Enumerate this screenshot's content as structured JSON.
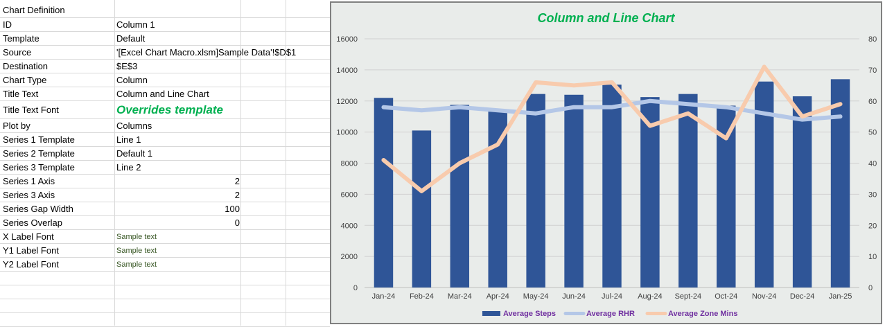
{
  "sheet": {
    "rows": [
      {
        "label": "Chart Definition",
        "value": "",
        "style": ""
      },
      {
        "label": "ID",
        "value": "Column 1",
        "style": ""
      },
      {
        "label": "Template",
        "value": "Default",
        "style": ""
      },
      {
        "label": "Source",
        "value": "'[Excel Chart Macro.xlsm]Sample Data'!$D$1",
        "style": ""
      },
      {
        "label": "Destination",
        "value": "$E$3",
        "style": ""
      },
      {
        "label": "Chart Type",
        "value": "Column",
        "style": ""
      },
      {
        "label": "Title Text",
        "value": "Column and Line Chart",
        "style": ""
      },
      {
        "label": "Title Text Font",
        "value": "Overrides template",
        "style": "big"
      },
      {
        "label": "Plot by",
        "value": "Columns",
        "style": ""
      },
      {
        "label": "Series 1 Template",
        "value": "Line 1",
        "style": ""
      },
      {
        "label": "Series 2 Template",
        "value": "Default 1",
        "style": ""
      },
      {
        "label": "Series 3 Template",
        "value": "Line 2",
        "style": ""
      },
      {
        "label": "Series 1 Axis",
        "value": "2",
        "style": "num"
      },
      {
        "label": "Series 3 Axis",
        "value": "2",
        "style": "num"
      },
      {
        "label": "Series Gap Width",
        "value": "100",
        "style": "num"
      },
      {
        "label": "Series Overlap",
        "value": "0",
        "style": "num"
      },
      {
        "label": "X Label Font",
        "value": "Sample text",
        "style": "small"
      },
      {
        "label": "Y1 Label Font",
        "value": "Sample text",
        "style": "small"
      },
      {
        "label": "Y2 Label Font",
        "value": "Sample text",
        "style": "small"
      },
      {
        "label": "",
        "value": "",
        "style": ""
      },
      {
        "label": "",
        "value": "",
        "style": ""
      },
      {
        "label": "",
        "value": "",
        "style": ""
      },
      {
        "label": "",
        "value": "",
        "style": ""
      }
    ]
  },
  "chart_data": {
    "type": "bar",
    "title": "Column and Line Chart",
    "categories": [
      "Jan-24",
      "Feb-24",
      "Mar-24",
      "Apr-24",
      "May-24",
      "Jun-24",
      "Jul-24",
      "Aug-24",
      "Sept-24",
      "Oct-24",
      "Nov-24",
      "Dec-24",
      "Jan-25"
    ],
    "series": [
      {
        "name": "Average Steps",
        "type": "bar",
        "axis": "primary",
        "color": "#2f5597",
        "values": [
          12200,
          10100,
          11750,
          11450,
          12450,
          12400,
          13050,
          12250,
          12450,
          11700,
          13250,
          12300,
          13400
        ]
      },
      {
        "name": "Average RHR",
        "type": "line",
        "axis": "secondary",
        "color": "#b4c7e7",
        "values": [
          58,
          57,
          58,
          57,
          56,
          58,
          58,
          60,
          59,
          58,
          56,
          54,
          55
        ]
      },
      {
        "name": "Average Zone Mins",
        "type": "line",
        "axis": "secondary",
        "color": "#f8cbad",
        "values": [
          41,
          31,
          40,
          46,
          66,
          65,
          66,
          52,
          56,
          48,
          71,
          55,
          59
        ]
      }
    ],
    "ylim": [
      0,
      16000
    ],
    "yticks": [
      0,
      2000,
      4000,
      6000,
      8000,
      10000,
      12000,
      14000,
      16000
    ],
    "y2lim": [
      0,
      80
    ],
    "y2ticks": [
      0,
      10,
      20,
      30,
      40,
      50,
      60,
      70,
      80
    ],
    "grid": true,
    "legend": "bottom"
  }
}
